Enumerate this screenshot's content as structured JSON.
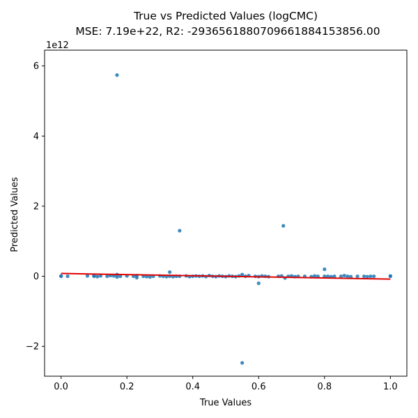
{
  "chart_data": {
    "type": "scatter",
    "title": "True vs Predicted Values (logCMC)",
    "subtitle": "MSE: 7.19e+22, R2: -29365618807096618841538​56.00",
    "xlabel": "True Values",
    "ylabel": "Predicted Values",
    "y_offset_text": "1e12",
    "xlim": [
      -0.05,
      1.05
    ],
    "ylim": [
      -2.85,
      6.45
    ],
    "xticks": [
      0.0,
      0.2,
      0.4,
      0.6,
      0.8,
      1.0
    ],
    "xtick_labels": [
      "0.0",
      "0.2",
      "0.4",
      "0.6",
      "0.8",
      "1.0"
    ],
    "yticks": [
      -2,
      0,
      2,
      4,
      6
    ],
    "ytick_labels": [
      "−2",
      "0",
      "2",
      "4",
      "6"
    ],
    "y_unit_multiplier": 1000000000000,
    "grid": false,
    "colors": {
      "points": "#1f77b4",
      "fit_line": "#e00000"
    },
    "fit_line": {
      "x": [
        0.0,
        1.0
      ],
      "y": [
        0.08,
        -0.08
      ]
    },
    "points": [
      {
        "x": 0.0,
        "y": 0.0
      },
      {
        "x": 0.0,
        "y": 0.01
      },
      {
        "x": 0.02,
        "y": 0.0
      },
      {
        "x": 0.08,
        "y": 0.01
      },
      {
        "x": 0.1,
        "y": 0.0
      },
      {
        "x": 0.1,
        "y": 0.02
      },
      {
        "x": 0.11,
        "y": -0.01
      },
      {
        "x": 0.12,
        "y": 0.01
      },
      {
        "x": 0.14,
        "y": 0.0
      },
      {
        "x": 0.15,
        "y": 0.02
      },
      {
        "x": 0.16,
        "y": 0.01
      },
      {
        "x": 0.17,
        "y": -0.02
      },
      {
        "x": 0.17,
        "y": 0.05
      },
      {
        "x": 0.17,
        "y": 5.74
      },
      {
        "x": 0.18,
        "y": 0.0
      },
      {
        "x": 0.2,
        "y": 0.01
      },
      {
        "x": 0.22,
        "y": 0.0
      },
      {
        "x": 0.23,
        "y": -0.04
      },
      {
        "x": 0.23,
        "y": 0.02
      },
      {
        "x": 0.25,
        "y": 0.0
      },
      {
        "x": 0.26,
        "y": -0.01
      },
      {
        "x": 0.27,
        "y": -0.02
      },
      {
        "x": 0.28,
        "y": 0.0
      },
      {
        "x": 0.3,
        "y": 0.01
      },
      {
        "x": 0.31,
        "y": 0.0
      },
      {
        "x": 0.32,
        "y": -0.01
      },
      {
        "x": 0.33,
        "y": 0.12
      },
      {
        "x": 0.33,
        "y": 0.0
      },
      {
        "x": 0.34,
        "y": -0.01
      },
      {
        "x": 0.35,
        "y": 0.0
      },
      {
        "x": 0.36,
        "y": 1.3
      },
      {
        "x": 0.36,
        "y": 0.0
      },
      {
        "x": 0.38,
        "y": 0.01
      },
      {
        "x": 0.39,
        "y": -0.01
      },
      {
        "x": 0.4,
        "y": 0.0
      },
      {
        "x": 0.41,
        "y": 0.01
      },
      {
        "x": 0.42,
        "y": 0.0
      },
      {
        "x": 0.43,
        "y": 0.01
      },
      {
        "x": 0.44,
        "y": -0.01
      },
      {
        "x": 0.45,
        "y": 0.02
      },
      {
        "x": 0.46,
        "y": 0.0
      },
      {
        "x": 0.47,
        "y": -0.01
      },
      {
        "x": 0.48,
        "y": 0.01
      },
      {
        "x": 0.49,
        "y": 0.0
      },
      {
        "x": 0.5,
        "y": -0.01
      },
      {
        "x": 0.51,
        "y": 0.01
      },
      {
        "x": 0.52,
        "y": 0.0
      },
      {
        "x": 0.53,
        "y": -0.01
      },
      {
        "x": 0.54,
        "y": 0.01
      },
      {
        "x": 0.55,
        "y": 0.05
      },
      {
        "x": 0.55,
        "y": -2.47
      },
      {
        "x": 0.56,
        "y": 0.0
      },
      {
        "x": 0.57,
        "y": 0.02
      },
      {
        "x": 0.59,
        "y": 0.0
      },
      {
        "x": 0.6,
        "y": -0.01
      },
      {
        "x": 0.6,
        "y": -0.2
      },
      {
        "x": 0.61,
        "y": 0.01
      },
      {
        "x": 0.62,
        "y": 0.0
      },
      {
        "x": 0.63,
        "y": -0.01
      },
      {
        "x": 0.66,
        "y": 0.0
      },
      {
        "x": 0.67,
        "y": 0.01
      },
      {
        "x": 0.675,
        "y": 1.44
      },
      {
        "x": 0.68,
        "y": -0.05
      },
      {
        "x": 0.69,
        "y": 0.0
      },
      {
        "x": 0.7,
        "y": 0.01
      },
      {
        "x": 0.71,
        "y": -0.01
      },
      {
        "x": 0.72,
        "y": 0.0
      },
      {
        "x": 0.74,
        "y": 0.0
      },
      {
        "x": 0.76,
        "y": -0.01
      },
      {
        "x": 0.77,
        "y": 0.01
      },
      {
        "x": 0.78,
        "y": 0.0
      },
      {
        "x": 0.8,
        "y": 0.2
      },
      {
        "x": 0.8,
        "y": 0.0
      },
      {
        "x": 0.81,
        "y": 0.0
      },
      {
        "x": 0.82,
        "y": -0.01
      },
      {
        "x": 0.83,
        "y": 0.0
      },
      {
        "x": 0.85,
        "y": 0.0
      },
      {
        "x": 0.86,
        "y": 0.02
      },
      {
        "x": 0.87,
        "y": 0.0
      },
      {
        "x": 0.88,
        "y": -0.01
      },
      {
        "x": 0.9,
        "y": 0.0
      },
      {
        "x": 0.92,
        "y": 0.0
      },
      {
        "x": 0.93,
        "y": -0.01
      },
      {
        "x": 0.94,
        "y": 0.0
      },
      {
        "x": 0.95,
        "y": 0.0
      },
      {
        "x": 1.0,
        "y": 0.0
      },
      {
        "x": 1.0,
        "y": 0.01
      }
    ]
  }
}
